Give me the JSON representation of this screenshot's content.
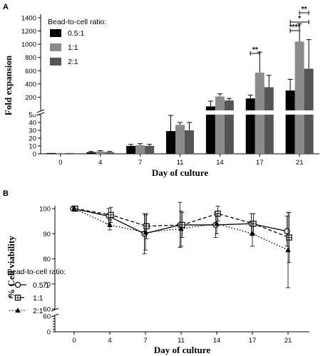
{
  "panels": {
    "a": "A",
    "b": "B"
  },
  "colors": {
    "s1": "#000000",
    "s2": "#8c8c8c",
    "s3": "#555555"
  },
  "chart_data": [
    {
      "type": "bar",
      "panel": "A",
      "xlabel": "Day of culture",
      "ylabel": "Fold expansion",
      "categories": [
        "0",
        "4",
        "7",
        "11",
        "14",
        "17",
        "21"
      ],
      "axis_break": {
        "lower_range": [
          0,
          50
        ],
        "upper_range": [
          0,
          1400
        ]
      },
      "lower_ticks": [
        0,
        10,
        20,
        30,
        40,
        50
      ],
      "upper_ticks": [
        200,
        400,
        600,
        800,
        1000,
        1200,
        1400
      ],
      "legend_title": "Bead-to-cell ratio:",
      "legend_position": "top-left",
      "series": [
        {
          "name": "0.5:1",
          "values": [
            1,
            2,
            10,
            29,
            60,
            180,
            300
          ],
          "errors": [
            0,
            1,
            2,
            20,
            80,
            50,
            170
          ]
        },
        {
          "name": "1:1",
          "values": [
            1,
            3,
            11,
            37,
            210,
            570,
            1040
          ],
          "errors": [
            0,
            1,
            2,
            3,
            40,
            310,
            270
          ]
        },
        {
          "name": "2:1",
          "values": [
            1,
            2,
            10,
            30,
            150,
            350,
            630
          ],
          "errors": [
            0,
            1,
            2,
            10,
            30,
            180,
            440
          ]
        }
      ],
      "significance": [
        {
          "label": "**",
          "category": "17",
          "from": 0,
          "to": 1,
          "level": 0
        },
        {
          "label": "****",
          "category": "21",
          "from": 0,
          "to": 1,
          "level": 0
        },
        {
          "label": "*",
          "category": "21",
          "from": 0,
          "to": 2,
          "level": 1
        },
        {
          "label": "**",
          "category": "21",
          "from": 1,
          "to": 2,
          "level": 2
        }
      ]
    },
    {
      "type": "line",
      "panel": "B",
      "xlabel": "Day of culture",
      "ylabel": "% Cell viability",
      "x": [
        "0",
        "4",
        "7",
        "11",
        "14",
        "17",
        "21"
      ],
      "axis_break": {
        "lower_range": [
          0,
          60
        ],
        "upper_range": [
          60,
          100
        ]
      },
      "lower_ticks": [
        0,
        10,
        20,
        30,
        40,
        50,
        60
      ],
      "upper_ticks": [
        60,
        70,
        80,
        90,
        100
      ],
      "legend_title": "Bead-to-cell ratio:",
      "legend_position": "bottom-left",
      "series": [
        {
          "name": "0.5:1",
          "marker": "circle",
          "dash": "solid",
          "values": [
            100,
            97,
            90,
            93.5,
            93.5,
            94,
            91
          ],
          "errors": [
            0,
            3,
            8,
            9,
            5,
            4,
            6
          ]
        },
        {
          "name": "1:1",
          "marker": "square",
          "dash": "dashed",
          "values": [
            100,
            97.5,
            93,
            93.5,
            98,
            94,
            88.5
          ],
          "errors": [
            0,
            3,
            5,
            5,
            3,
            4,
            10
          ]
        },
        {
          "name": "2:1",
          "marker": "triangle",
          "dash": "dotted",
          "values": [
            100,
            93.5,
            90.5,
            92,
            94,
            90,
            83.5
          ],
          "errors": [
            0,
            2,
            7,
            7,
            4,
            5,
            15
          ]
        }
      ]
    }
  ]
}
